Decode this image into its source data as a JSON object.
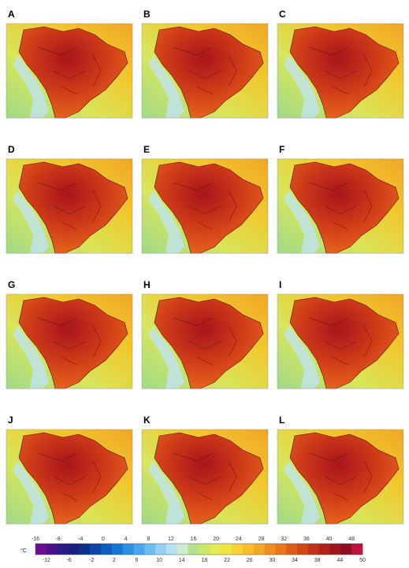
{
  "panels": [
    "A",
    "B",
    "C",
    "D",
    "E",
    "F",
    "G",
    "H",
    "I",
    "J",
    "K",
    "L"
  ],
  "colorbar": {
    "unit": "°C",
    "labels_top": [
      -16,
      -8,
      -4,
      0,
      4,
      8,
      12,
      16,
      20,
      24,
      28,
      32,
      36,
      40,
      48
    ],
    "labels_bottom": [
      -12,
      -6,
      -2,
      2,
      6,
      10,
      14,
      18,
      22,
      26,
      30,
      34,
      38,
      44,
      50
    ],
    "colors": [
      "#6a0d91",
      "#4b0f8f",
      "#2a1a8a",
      "#16227f",
      "#0d2f8c",
      "#0b45a5",
      "#0d5cc0",
      "#1675d6",
      "#2b8fe4",
      "#4aa6ec",
      "#6ebdf2",
      "#93d0f4",
      "#b6e1f2",
      "#cdeccb",
      "#b5e08c",
      "#cde66a",
      "#e3ea52",
      "#f1e440",
      "#f6d234",
      "#f7bd2b",
      "#f4a724",
      "#ef8f1f",
      "#e8761b",
      "#de5d18",
      "#d24616",
      "#c33216",
      "#b02218",
      "#9e161b",
      "#8c0f20",
      "#c0123e"
    ]
  }
}
